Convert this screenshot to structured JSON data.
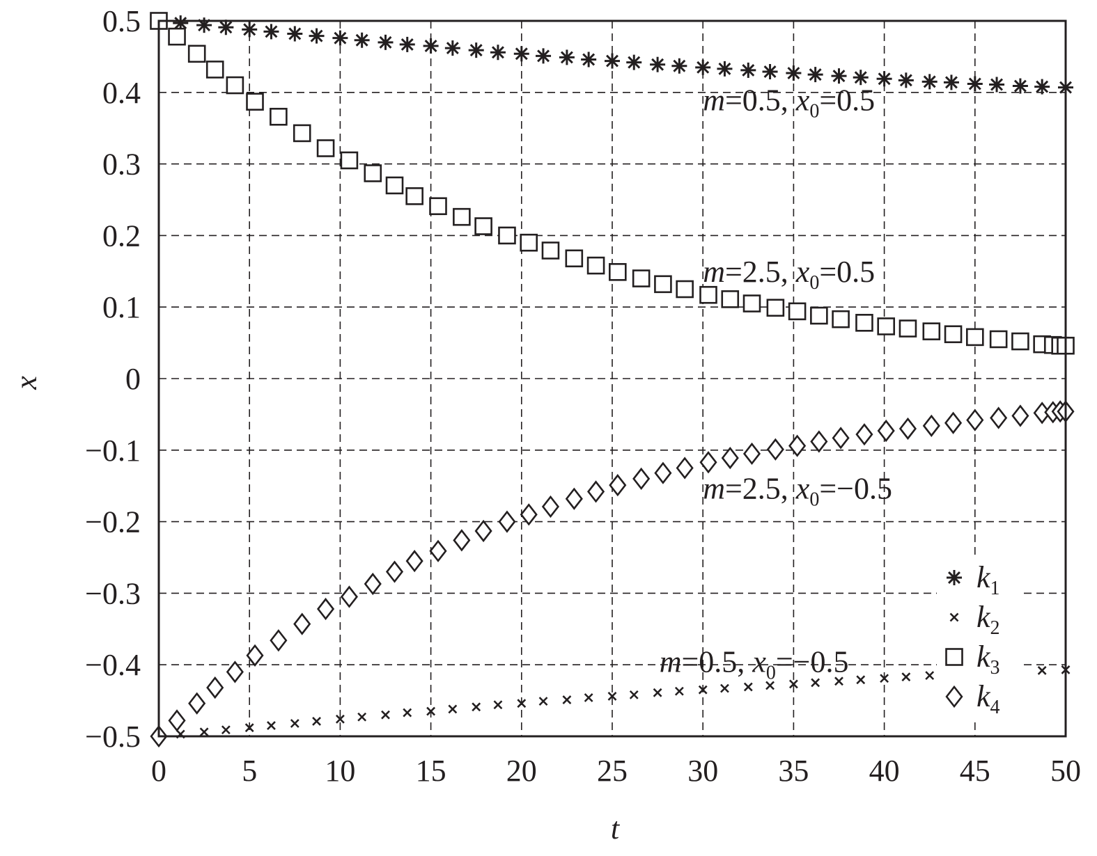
{
  "chart_data": {
    "type": "scatter",
    "xlabel": "t",
    "ylabel": "x",
    "xlim": [
      0,
      50
    ],
    "ylim": [
      -0.5,
      0.5
    ],
    "xticks": [
      0,
      5,
      10,
      15,
      20,
      25,
      30,
      35,
      40,
      45,
      50
    ],
    "yticks": [
      0.5,
      0.4,
      0.3,
      0.2,
      0.1,
      0,
      -0.1,
      -0.2,
      -0.3,
      -0.4,
      -0.5
    ],
    "ytick_labels": [
      "0.5",
      "0.4",
      "0.3",
      "0.2",
      "0.1",
      "0",
      "−0.1",
      "−0.2",
      "−0.3",
      "−0.4",
      "−0.5"
    ],
    "xtick_labels": [
      "0",
      "5",
      "10",
      "15",
      "20",
      "25",
      "30",
      "35",
      "40",
      "45",
      "50"
    ],
    "grid": true,
    "legend_position": "bottom-right",
    "series": [
      {
        "name": "k",
        "name_sub": "1",
        "marker": "asterisk",
        "x": [
          0,
          1.2,
          2.5,
          3.7,
          5.0,
          6.2,
          7.5,
          8.7,
          10.0,
          11.2,
          12.5,
          13.7,
          15.0,
          16.2,
          17.5,
          18.7,
          20.0,
          21.2,
          22.5,
          23.7,
          25.0,
          26.2,
          27.5,
          28.7,
          30.0,
          31.2,
          32.5,
          33.7,
          35.0,
          36.2,
          37.5,
          38.7,
          40.0,
          41.2,
          42.5,
          43.7,
          45.0,
          46.2,
          47.5,
          48.7,
          50.0
        ],
        "y": [
          0.5,
          0.497,
          0.494,
          0.491,
          0.488,
          0.485,
          0.482,
          0.479,
          0.476,
          0.473,
          0.47,
          0.467,
          0.465,
          0.462,
          0.459,
          0.456,
          0.454,
          0.451,
          0.449,
          0.446,
          0.444,
          0.442,
          0.439,
          0.437,
          0.435,
          0.433,
          0.431,
          0.429,
          0.427,
          0.425,
          0.423,
          0.421,
          0.419,
          0.417,
          0.415,
          0.414,
          0.412,
          0.411,
          0.409,
          0.408,
          0.407
        ]
      },
      {
        "name": "k",
        "name_sub": "2",
        "marker": "x",
        "x": [
          0,
          1.2,
          2.5,
          3.7,
          5.0,
          6.2,
          7.5,
          8.7,
          10.0,
          11.2,
          12.5,
          13.7,
          15.0,
          16.2,
          17.5,
          18.7,
          20.0,
          21.2,
          22.5,
          23.7,
          25.0,
          26.2,
          27.5,
          28.7,
          30.0,
          31.2,
          32.5,
          33.7,
          35.0,
          36.2,
          37.5,
          38.7,
          40.0,
          41.2,
          42.5,
          48.7,
          50.0
        ],
        "y": [
          -0.5,
          -0.497,
          -0.494,
          -0.491,
          -0.488,
          -0.485,
          -0.482,
          -0.479,
          -0.476,
          -0.473,
          -0.47,
          -0.467,
          -0.465,
          -0.462,
          -0.459,
          -0.456,
          -0.454,
          -0.451,
          -0.449,
          -0.446,
          -0.444,
          -0.442,
          -0.439,
          -0.437,
          -0.435,
          -0.433,
          -0.431,
          -0.429,
          -0.427,
          -0.425,
          -0.423,
          -0.421,
          -0.419,
          -0.417,
          -0.415,
          -0.408,
          -0.407
        ]
      },
      {
        "name": "k",
        "name_sub": "3",
        "marker": "square",
        "x": [
          0,
          1.0,
          2.1,
          3.1,
          4.2,
          5.3,
          6.6,
          7.9,
          9.2,
          10.5,
          11.8,
          13.0,
          14.1,
          15.4,
          16.7,
          17.9,
          19.2,
          20.4,
          21.6,
          22.9,
          24.1,
          25.3,
          26.6,
          27.8,
          29.0,
          30.3,
          31.5,
          32.7,
          34.0,
          35.2,
          36.4,
          37.6,
          38.9,
          40.1,
          41.3,
          42.6,
          43.8,
          45.0,
          46.3,
          47.5,
          48.7,
          49.3,
          49.7,
          50.0
        ],
        "y": [
          0.5,
          0.478,
          0.454,
          0.432,
          0.41,
          0.387,
          0.366,
          0.343,
          0.322,
          0.305,
          0.287,
          0.27,
          0.255,
          0.241,
          0.226,
          0.213,
          0.2,
          0.19,
          0.179,
          0.168,
          0.158,
          0.149,
          0.14,
          0.132,
          0.125,
          0.117,
          0.111,
          0.105,
          0.099,
          0.094,
          0.088,
          0.083,
          0.078,
          0.073,
          0.07,
          0.066,
          0.062,
          0.058,
          0.055,
          0.052,
          0.048,
          0.047,
          0.046,
          0.046
        ]
      },
      {
        "name": "k",
        "name_sub": "4",
        "marker": "diamond",
        "x": [
          0,
          1.0,
          2.1,
          3.1,
          4.2,
          5.3,
          6.6,
          7.9,
          9.2,
          10.5,
          11.8,
          13.0,
          14.1,
          15.4,
          16.7,
          17.9,
          19.2,
          20.4,
          21.6,
          22.9,
          24.1,
          25.3,
          26.6,
          27.8,
          29.0,
          30.3,
          31.5,
          32.7,
          34.0,
          35.2,
          36.4,
          37.6,
          38.9,
          40.1,
          41.3,
          42.6,
          43.8,
          45.0,
          46.3,
          47.5,
          48.7,
          49.3,
          49.7,
          50.0
        ],
        "y": [
          -0.5,
          -0.478,
          -0.454,
          -0.432,
          -0.41,
          -0.387,
          -0.366,
          -0.343,
          -0.322,
          -0.305,
          -0.287,
          -0.27,
          -0.255,
          -0.241,
          -0.226,
          -0.213,
          -0.2,
          -0.19,
          -0.179,
          -0.168,
          -0.158,
          -0.149,
          -0.14,
          -0.132,
          -0.125,
          -0.117,
          -0.111,
          -0.105,
          -0.099,
          -0.094,
          -0.088,
          -0.083,
          -0.078,
          -0.073,
          -0.07,
          -0.066,
          -0.062,
          -0.058,
          -0.055,
          -0.052,
          -0.048,
          -0.047,
          -0.046,
          -0.046
        ]
      }
    ],
    "annotations": [
      {
        "m": "m",
        "eq": "=0.5, ",
        "xv": "x",
        "sub": "0",
        "val": "=0.5",
        "at_x": 30,
        "at_y": 0.375
      },
      {
        "m": "m",
        "eq": "=2.5, ",
        "xv": "x",
        "sub": "0",
        "val": "=0.5",
        "at_x": 30,
        "at_y": 0.135
      },
      {
        "m": "m",
        "eq": "=2.5, ",
        "xv": "x",
        "sub": "0",
        "val": "=−0.5",
        "at_x": 30,
        "at_y": -0.168
      },
      {
        "m": "m",
        "eq": "=0.5, ",
        "xv": "x",
        "sub": "0",
        "val": "=−0.5",
        "at_x": 27.6,
        "at_y": -0.41
      }
    ]
  }
}
